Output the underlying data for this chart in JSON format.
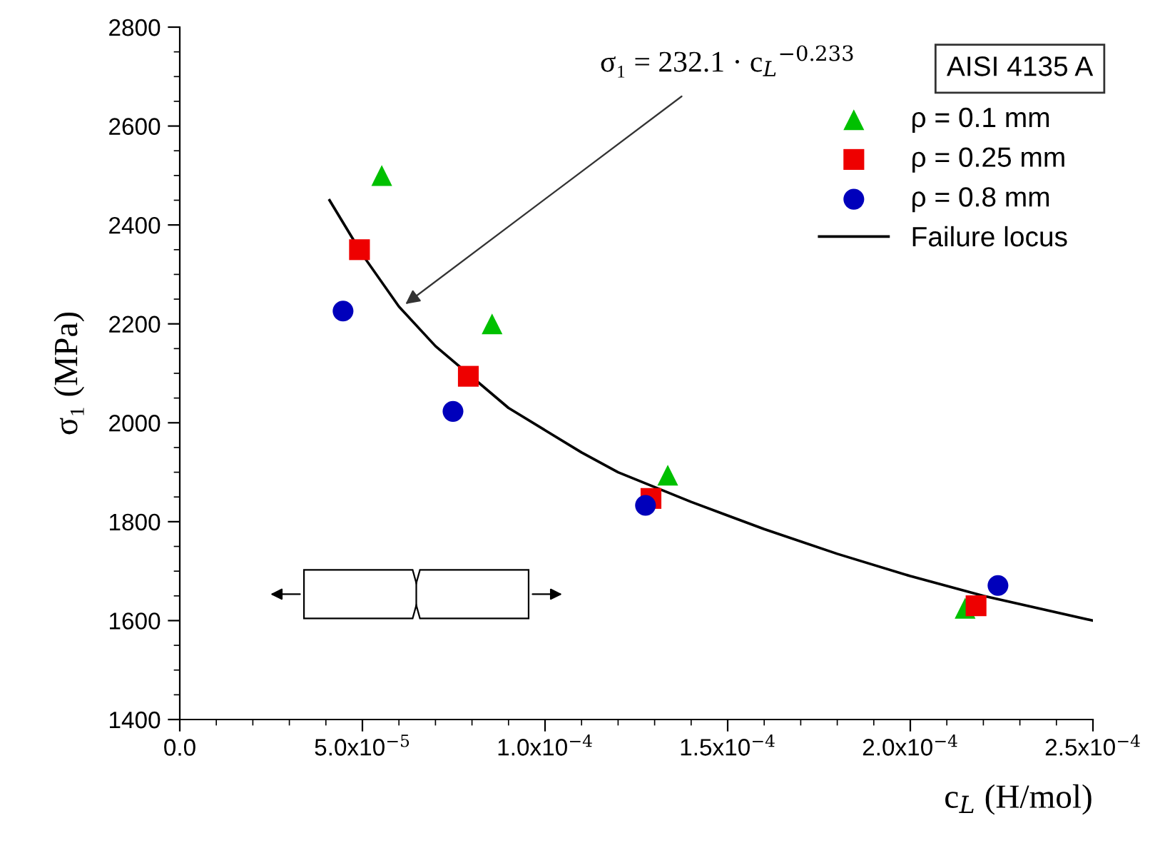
{
  "chart_data": {
    "type": "scatter",
    "xlabel": "c$_{L}$ (H/mol)",
    "ylabel": "σ₁ (MPa)",
    "xlim": [
      0,
      0.00025
    ],
    "ylim": [
      1400,
      2800
    ],
    "xticks": [
      {
        "value": 0,
        "label": "0.0"
      },
      {
        "value": 5e-05,
        "label": "5.0x10$^{−5}$"
      },
      {
        "value": 0.0001,
        "label": "1.0x10$^{−4}$"
      },
      {
        "value": 0.00015,
        "label": "1.5x10$^{−4}$"
      },
      {
        "value": 0.0002,
        "label": "2.0x10$^{−4}$"
      },
      {
        "value": 0.00025,
        "label": "2.5x10$^{−4}$"
      }
    ],
    "yticks": [
      1400,
      1600,
      1800,
      2000,
      2200,
      2400,
      2600,
      2800
    ],
    "legend": "right",
    "grid": false,
    "series": [
      {
        "name": "ρ = 0.1 mm",
        "color": "#00c000",
        "marker": "triangle",
        "x": [
          5.53e-05,
          8.55e-05,
          0.0001336,
          0.000215
        ],
        "values": [
          2500,
          2200,
          1894,
          1625
        ]
      },
      {
        "name": "ρ = 0.25 mm",
        "color": "#ee0000",
        "marker": "square",
        "x": [
          4.92e-05,
          7.9e-05,
          0.000129,
          0.000218
        ],
        "values": [
          2350,
          2094,
          1847,
          1630
        ]
      },
      {
        "name": "ρ = 0.8 mm",
        "color": "#0000bb",
        "marker": "circle",
        "x": [
          4.47e-05,
          7.48e-05,
          0.0001275,
          0.000224
        ],
        "values": [
          2226,
          2023,
          1833,
          1671
        ]
      },
      {
        "name": "Failure locus",
        "type": "line",
        "color": "#000000",
        "marker": "none",
        "line_style": "solid",
        "x": [
          4.1e-05,
          5e-05,
          6e-05,
          7e-05,
          9e-05,
          0.0001,
          0.00011,
          0.00012,
          0.00014,
          0.00016,
          0.00018,
          0.0002,
          0.00022,
          0.00025
        ],
        "values": [
          2450,
          2340,
          2235,
          2155,
          2030,
          1985,
          1940,
          1900,
          1840,
          1785,
          1735,
          1690,
          1650,
          1600
        ]
      }
    ],
    "annotations": [
      {
        "text": "σ₁ = 232.1 · c$_{L}$$^{−0.233}$",
        "x": 6.18e-05,
        "y": 2240
      },
      "AISI 4135 A"
    ]
  }
}
